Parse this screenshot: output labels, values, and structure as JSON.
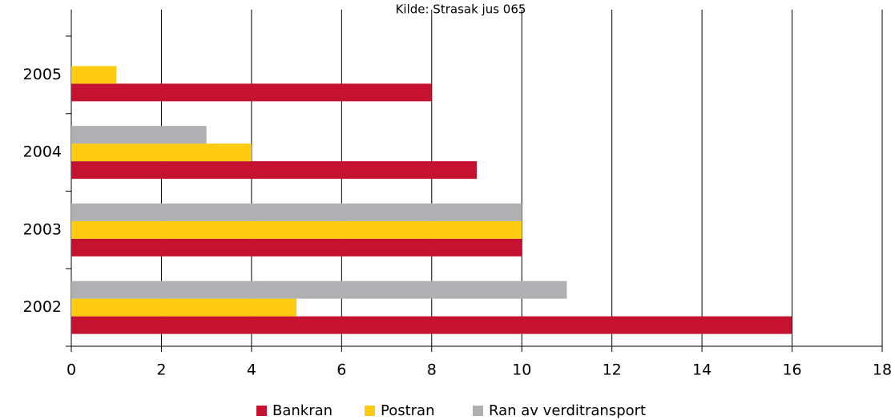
{
  "chart_data": {
    "type": "hbar",
    "title": "Kilde: Strasak jus 065",
    "categories": [
      "2002",
      "2003",
      "2004",
      "2005"
    ],
    "series": [
      {
        "name": "Bankran",
        "color": "#c41230",
        "values": [
          16,
          10,
          9,
          8
        ]
      },
      {
        "name": "Postran",
        "color": "#ffcc11",
        "values": [
          5,
          10,
          4,
          1
        ]
      },
      {
        "name": "Ran av verditransport",
        "color": "#b0b0b3",
        "values": [
          11,
          10,
          3,
          null
        ]
      }
    ],
    "xlim": [
      0,
      18
    ],
    "xticks": [
      0,
      2,
      4,
      6,
      8,
      10,
      12,
      14,
      16,
      18
    ],
    "grid": true
  }
}
